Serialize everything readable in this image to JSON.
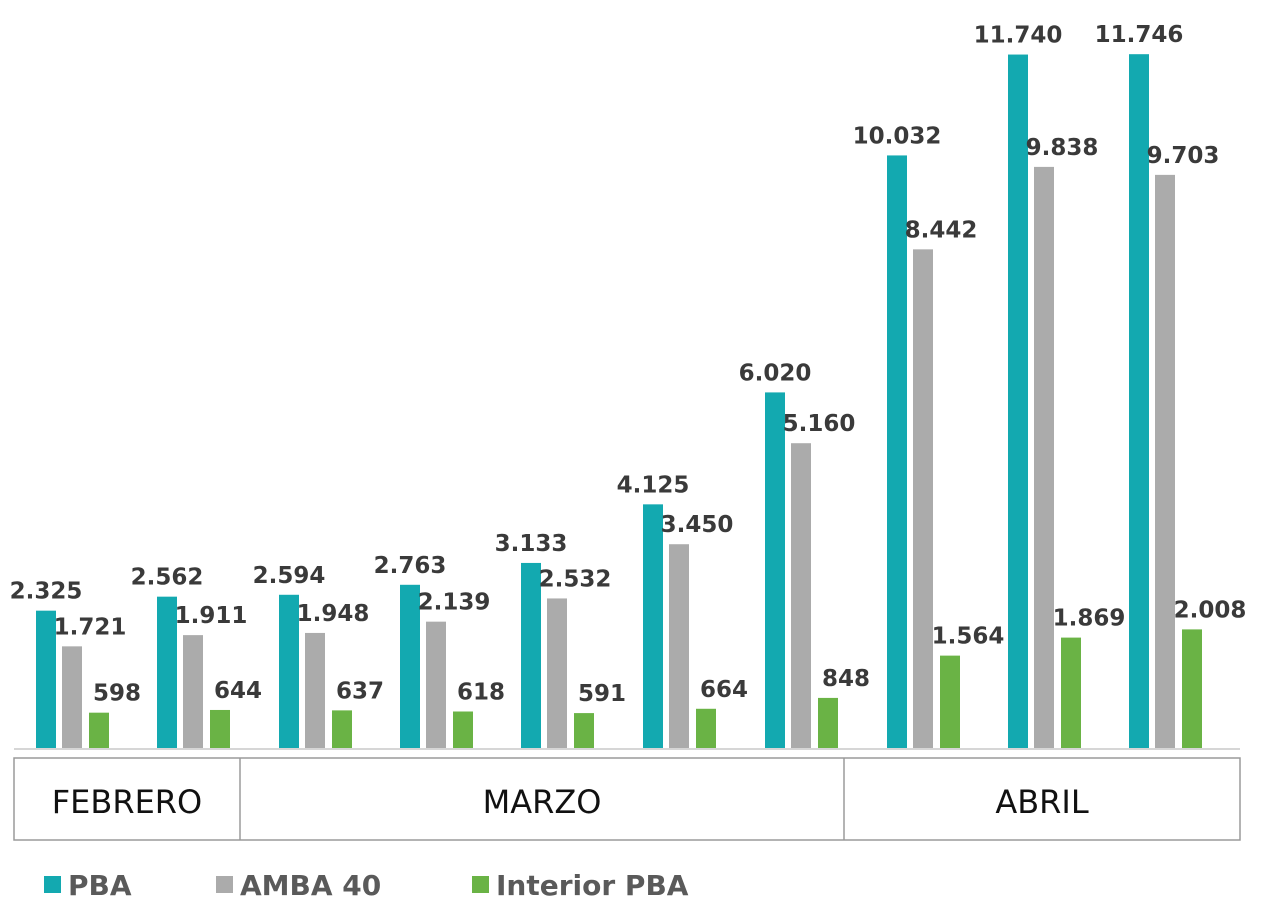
{
  "chart_data": {
    "type": "bar",
    "groups": [
      {
        "month": "FEBRERO",
        "index_start": 0,
        "index_end": 1
      },
      {
        "month": "MARZO",
        "index_start": 2,
        "index_end": 6
      },
      {
        "month": "ABRIL",
        "index_start": 7,
        "index_end": 9
      }
    ],
    "series": [
      {
        "name": "PBA",
        "color": "#13a9b0",
        "values": [
          2325,
          2562,
          2594,
          2763,
          3133,
          4125,
          6020,
          10032,
          11740,
          11746
        ],
        "labels": [
          "2.325",
          "2.562",
          "2.594",
          "2.763",
          "3.133",
          "4.125",
          "6.020",
          "10.032",
          "11.740",
          "11.746"
        ]
      },
      {
        "name": "AMBA 40",
        "color": "#ababab",
        "values": [
          1721,
          1911,
          1948,
          2139,
          2532,
          3450,
          5160,
          8442,
          9838,
          9703
        ],
        "labels": [
          "1.721",
          "1.911",
          "1.948",
          "2.139",
          "2.532",
          "3.450",
          "5.160",
          "8.442",
          "9.838",
          "9.703"
        ]
      },
      {
        "name": "Interior PBA",
        "color": "#6ab345",
        "values": [
          598,
          644,
          637,
          618,
          591,
          664,
          848,
          1564,
          1869,
          2008
        ],
        "labels": [
          "598",
          "644",
          "637",
          "618",
          "591",
          "664",
          "848",
          "1.564",
          "1.869",
          "2.008"
        ]
      }
    ],
    "ylim": [
      0,
      11900
    ],
    "grid": false,
    "legend_position": "bottom-left"
  }
}
